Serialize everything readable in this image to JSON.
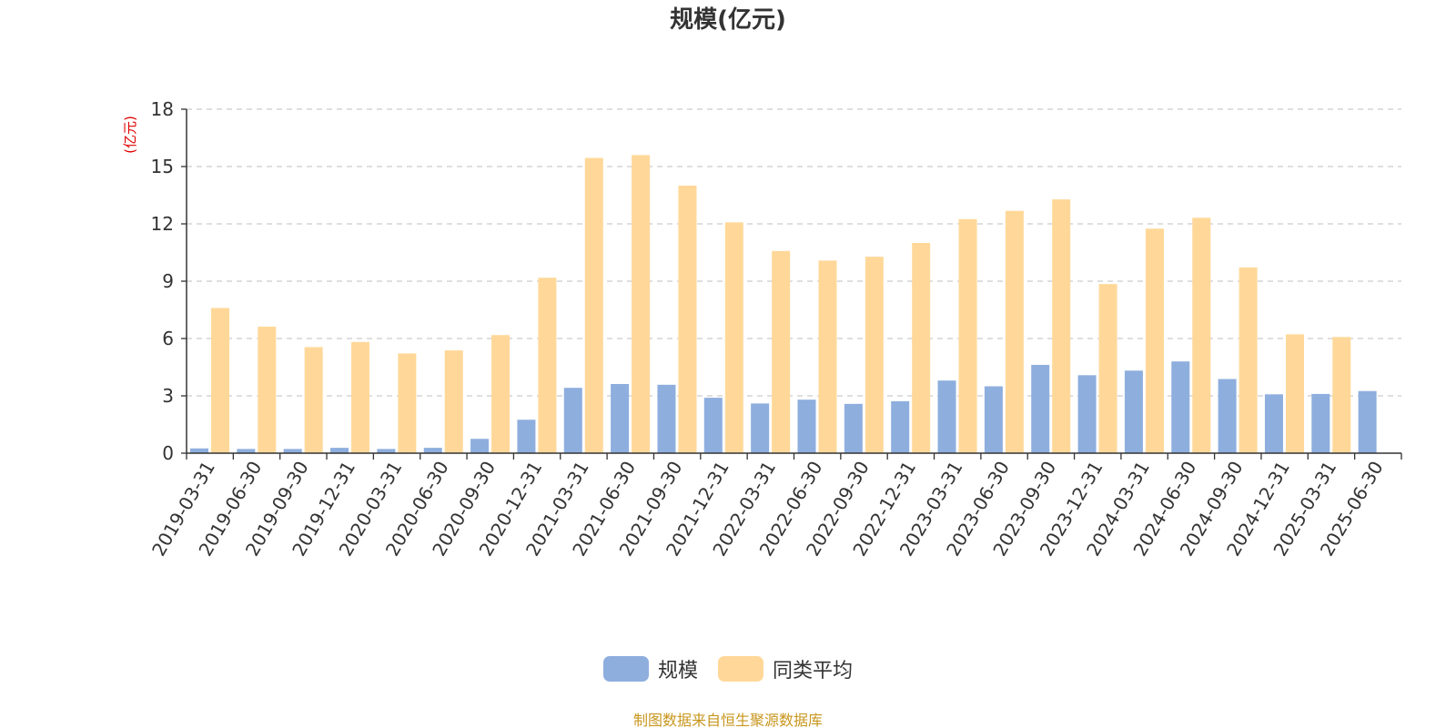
{
  "chart_data": {
    "type": "bar",
    "title": "规模(亿元)",
    "ylabel": "(亿元)",
    "xlabel": "",
    "ylim": [
      0,
      18
    ],
    "yticks": [
      "0",
      "3",
      "6",
      "9",
      "12",
      "15",
      "18"
    ],
    "grid": true,
    "legend_position": "bottom-center",
    "categories": [
      "2019-03-31",
      "2019-06-30",
      "2019-09-30",
      "2019-12-31",
      "2020-03-31",
      "2020-06-30",
      "2020-09-30",
      "2020-12-31",
      "2021-03-31",
      "2021-06-30",
      "2021-09-30",
      "2021-12-31",
      "2022-03-31",
      "2022-06-30",
      "2022-09-30",
      "2022-12-31",
      "2023-03-31",
      "2023-06-30",
      "2023-09-30",
      "2023-12-31",
      "2024-03-31",
      "2024-06-30",
      "2024-09-30",
      "2024-12-31",
      "2025-03-31",
      "2025-06-30"
    ],
    "series": [
      {
        "name": "规模",
        "color": "#8eaede",
        "values": [
          0.25,
          0.22,
          0.22,
          0.28,
          0.22,
          0.28,
          0.75,
          1.75,
          3.42,
          3.62,
          3.58,
          2.9,
          2.6,
          2.8,
          2.58,
          2.72,
          3.8,
          3.5,
          4.62,
          4.08,
          4.32,
          4.8,
          3.88,
          3.08,
          3.1,
          3.25
        ]
      },
      {
        "name": "同类平均",
        "color": "#ffd899",
        "values": [
          7.6,
          6.62,
          5.55,
          5.82,
          5.22,
          5.38,
          6.18,
          9.18,
          15.45,
          15.6,
          14.0,
          12.08,
          10.58,
          10.08,
          10.28,
          11.0,
          12.25,
          12.68,
          13.28,
          8.85,
          11.75,
          12.32,
          9.72,
          6.22,
          6.08,
          null
        ]
      }
    ]
  },
  "footer": {
    "source": "制图数据来自恒生聚源数据库"
  }
}
